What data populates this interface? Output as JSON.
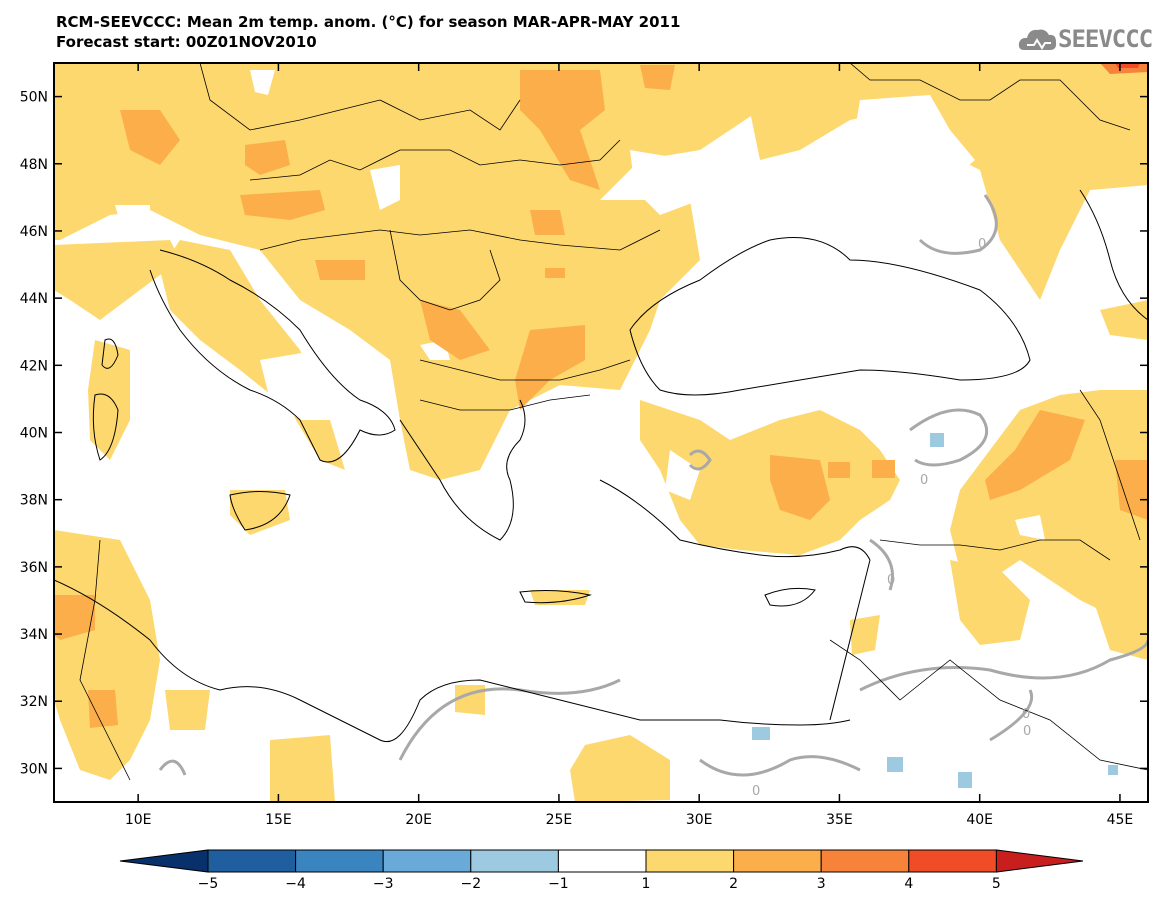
{
  "header": {
    "title_line1": "RCM-SEEVCCC: Mean 2m temp. anom. (°C) for season MAR-APR-MAY 2011",
    "title_line2": "Forecast start: 00Z01NOV2010",
    "logo_text": "SEEVCCC"
  },
  "map": {
    "lon_range": [
      7,
      46
    ],
    "lat_range": [
      29,
      51
    ],
    "lat_labels": [
      {
        "lat": 50,
        "text": "50N"
      },
      {
        "lat": 48,
        "text": "48N"
      },
      {
        "lat": 46,
        "text": "46N"
      },
      {
        "lat": 44,
        "text": "44N"
      },
      {
        "lat": 42,
        "text": "42N"
      },
      {
        "lat": 40,
        "text": "40N"
      },
      {
        "lat": 38,
        "text": "38N"
      },
      {
        "lat": 36,
        "text": "36N"
      },
      {
        "lat": 34,
        "text": "34N"
      },
      {
        "lat": 32,
        "text": "32N"
      },
      {
        "lat": 30,
        "text": "30N"
      }
    ],
    "lon_labels": [
      {
        "lon": 10,
        "text": "10E"
      },
      {
        "lon": 15,
        "text": "15E"
      },
      {
        "lon": 20,
        "text": "20E"
      },
      {
        "lon": 25,
        "text": "25E"
      },
      {
        "lon": 30,
        "text": "30E"
      },
      {
        "lon": 35,
        "text": "35E"
      },
      {
        "lon": 40,
        "text": "40E"
      },
      {
        "lon": 45,
        "text": "45E"
      }
    ],
    "contour_labels": [
      "0",
      "0",
      "0",
      "0",
      "0",
      "0"
    ]
  },
  "colorbar": {
    "labels": [
      "−5",
      "−4",
      "−3",
      "−2",
      "−1",
      "1",
      "2",
      "3",
      "4",
      "5"
    ],
    "colors": {
      "lt_-5": "#08306b",
      "-5_-4": "#1f5f9f",
      "-4_-3": "#3a84bf",
      "-3_-2": "#6aaad8",
      "-2_-1": "#9ecae1",
      "-1_1": "#ffffff",
      "1_2": "#fdd86e",
      "2_3": "#fbae4a",
      "3_4": "#f7833a",
      "4_5": "#f04c28",
      "gt_5": "#c81e1e"
    }
  },
  "colors": {
    "class_1_2": "#fdd86e",
    "class_2_3": "#fbae4a",
    "class_3_4": "#f7833a",
    "class_4_5": "#f04c28",
    "class_-2_-1": "#9ecae1",
    "zero_contour": "#a8a8a8"
  }
}
